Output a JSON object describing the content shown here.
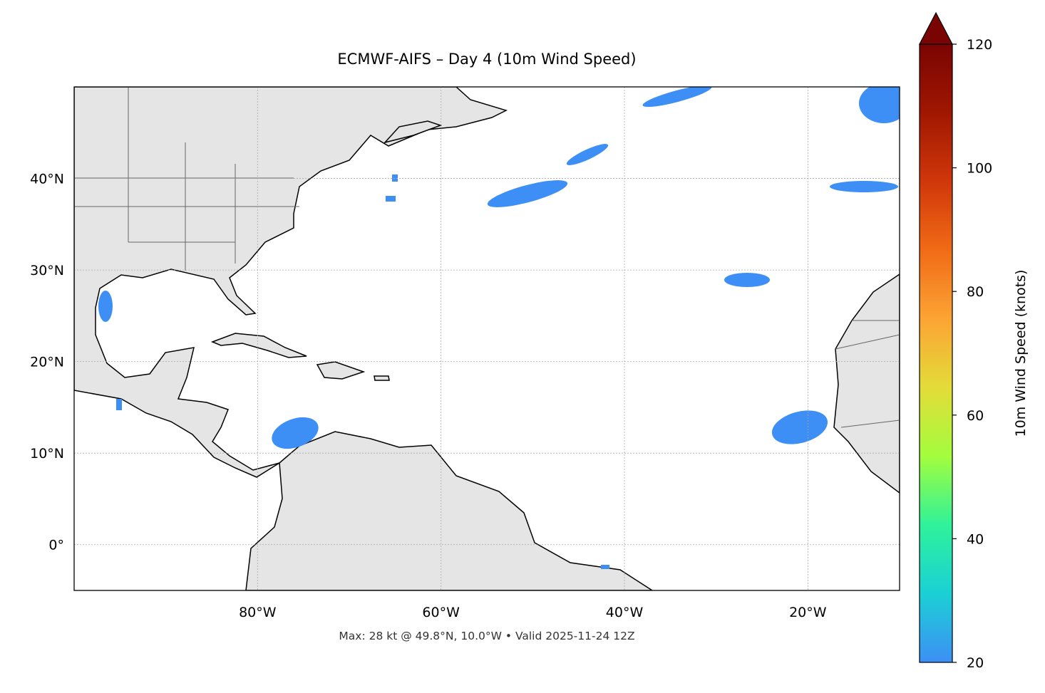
{
  "chart_data": {
    "type": "map",
    "title": "ECMWF-AIFS – Day 4 (10m Wind Speed)",
    "annotation": "Max: 28 kt @ 49.8°N, 10.0°W • Valid 2025-11-24 12Z",
    "xlim": [
      -100,
      -10
    ],
    "ylim": [
      -5,
      50
    ],
    "xticks": [
      {
        "value": -80,
        "label": "80°W"
      },
      {
        "value": -60,
        "label": "60°W"
      },
      {
        "value": -40,
        "label": "40°W"
      },
      {
        "value": -20,
        "label": "20°W"
      }
    ],
    "yticks": [
      {
        "value": 0,
        "label": "0°"
      },
      {
        "value": 10,
        "label": "10°N"
      },
      {
        "value": 20,
        "label": "20°N"
      },
      {
        "value": 30,
        "label": "30°N"
      },
      {
        "value": 40,
        "label": "40°N"
      }
    ],
    "grid": true,
    "colorbar": {
      "label": "10m Wind Speed (knots)",
      "lim": [
        20,
        120
      ],
      "ticks": [
        20,
        40,
        60,
        80,
        100,
        120
      ],
      "colors": [
        "#3d8ff6",
        "#1bd0d5",
        "#2ff29a",
        "#a3fd3d",
        "#e3dc38",
        "#fca434",
        "#f16b16",
        "#d0370a",
        "#a01701",
        "#7a0403"
      ]
    }
  }
}
